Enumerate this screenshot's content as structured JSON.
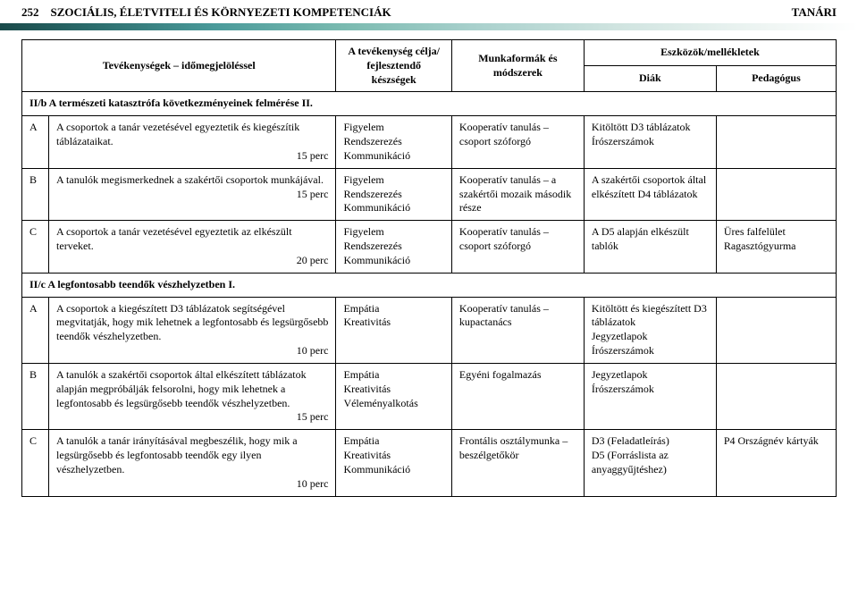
{
  "header": {
    "page_number": "252",
    "title": "SZOCIÁLIS, ÉLETVITELI ÉS KÖRNYEZETI KOMPETENCIÁK",
    "role": "TANÁRI"
  },
  "table": {
    "head": {
      "activity": "Tevékenységek – időmegjelöléssel",
      "goal": "A tevékenység célja/ fejlesztendő készségek",
      "method": "Munkaformák és módszerek",
      "tools": "Eszközök/mellékletek",
      "diak": "Diák",
      "pedagogus": "Pedagógus"
    },
    "section1": "II/b A természeti katasztrófa következményeinek felmérése II.",
    "r1": {
      "label": "A",
      "activity": "A csoportok a tanár vezetésével egyeztetik és kiegészítik táblázataikat.",
      "time": "15 perc",
      "goal": "Figyelem\nRendszerezés\nKommunikáció",
      "method": "Kooperatív tanulás – csoport szóforgó",
      "diak": "Kitöltött D3 táblázatok\nÍrószerszámok",
      "ped": ""
    },
    "r2": {
      "label": "B",
      "activity": "A tanulók megismerkednek a szakértői csoportok munkájával.",
      "time": "15 perc",
      "goal": "Figyelem\nRendszerezés\nKommunikáció",
      "method": "Kooperatív tanulás – a szakértői mozaik második része",
      "diak": "A szakértői csoportok által elkészített D4 táblázatok",
      "ped": ""
    },
    "r3": {
      "label": "C",
      "activity": "A csoportok a tanár vezetésével egyeztetik az elkészült terveket.",
      "time": "20 perc",
      "goal": "Figyelem\nRendszerezés\nKommunikáció",
      "method": "Kooperatív tanulás – csoport szóforgó",
      "diak": "A D5 alapján elkészült tablók",
      "ped": "Üres falfelület\nRagasztógyurma"
    },
    "section2": "II/c A legfontosabb teendők vészhelyzetben I.",
    "r4": {
      "label": "A",
      "activity": "A csoportok a kiegészített D3 táblázatok segítségével megvitatják, hogy mik lehetnek a legfontosabb és legsürgősebb teendők vészhelyzetben.",
      "time": "10 perc",
      "goal": "Empátia\nKreativitás",
      "method": "Kooperatív tanulás – kupactanács",
      "diak": "Kitöltött és kiegészített D3 táblázatok\nJegyzetlapok\nÍrószerszámok",
      "ped": ""
    },
    "r5": {
      "label": "B",
      "activity": "A tanulók a szakértői csoportok által elkészített táblázatok alapján megpróbálják felsorolni, hogy mik lehetnek a legfontosabb és legsürgősebb teendők vészhelyzetben.",
      "time": "15 perc",
      "goal": "Empátia\nKreativitás\nVéleményalkotás",
      "method": "Egyéni fogalmazás",
      "diak": "Jegyzetlapok\nÍrószerszámok",
      "ped": ""
    },
    "r6": {
      "label": "C",
      "activity": "A tanulók a tanár irányításával megbeszélik, hogy mik a legsürgősebb és legfontosabb teendők egy ilyen vészhelyzetben.",
      "time": "10 perc",
      "goal": "Empátia\nKreativitás\nKommunikáció",
      "method": "Frontális osztálymunka – beszélgetőkör",
      "diak": "D3 (Feladatleírás)\nD5 (Forráslista az anyaggyűjtéshez)",
      "ped": "P4 Országnév kártyák"
    }
  }
}
